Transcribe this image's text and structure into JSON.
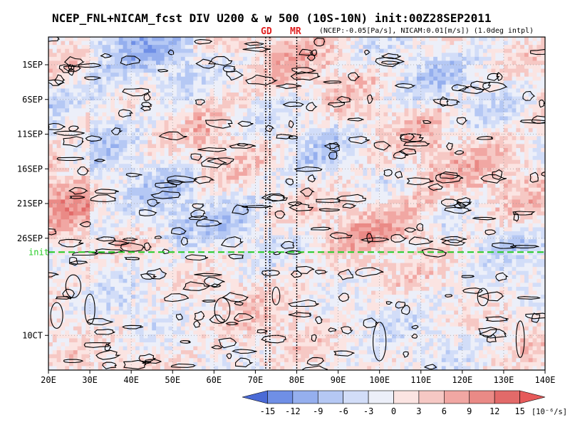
{
  "chart_data": {
    "type": "heatmap",
    "title": "NCEP_FNL+NICAM_fcst DIV U200 & w 500 (10S-10N) init:00Z28SEP2011",
    "subtitle": "(NCEP:-0.05[Pa/s], NICAM:0.01[m/s]) (1.0deg intpl)",
    "xlabel": "",
    "ylabel": "",
    "x_ticks": [
      "20E",
      "30E",
      "40E",
      "50E",
      "60E",
      "70E",
      "80E",
      "90E",
      "100E",
      "110E",
      "120E",
      "130E",
      "140E"
    ],
    "x_range": [
      20,
      140
    ],
    "y_ticks": [
      "1SEP",
      "6SEP",
      "11SEP",
      "16SEP",
      "21SEP",
      "26SEP",
      "10CT"
    ],
    "y_tick_days": [
      4,
      9,
      14,
      19,
      24,
      29,
      43
    ],
    "y_range": [
      0,
      48
    ],
    "grid": true,
    "init_line": {
      "label": "init",
      "day": 31,
      "color": "#22cc22"
    },
    "markers": [
      {
        "label": "GD",
        "lon": [
          72.5,
          73.5
        ]
      },
      {
        "label": "MR",
        "lon": [
          80
        ]
      }
    ],
    "colorbar": {
      "levels": [
        "-15",
        "-12",
        "-9",
        "-6",
        "-3",
        "0",
        "3",
        "6",
        "9",
        "12",
        "15"
      ],
      "unit": "[10⁻⁶/s]",
      "colors": [
        "#4a6ad6",
        "#6f8fe6",
        "#95afee",
        "#b5c8f4",
        "#d2ddf8",
        "#eceff9",
        "#fbe4e2",
        "#f6c8c4",
        "#f1a7a3",
        "#ea8a86",
        "#e26a69",
        "#e65a5a"
      ],
      "extend": "both"
    },
    "marker_color": "#e02020"
  }
}
